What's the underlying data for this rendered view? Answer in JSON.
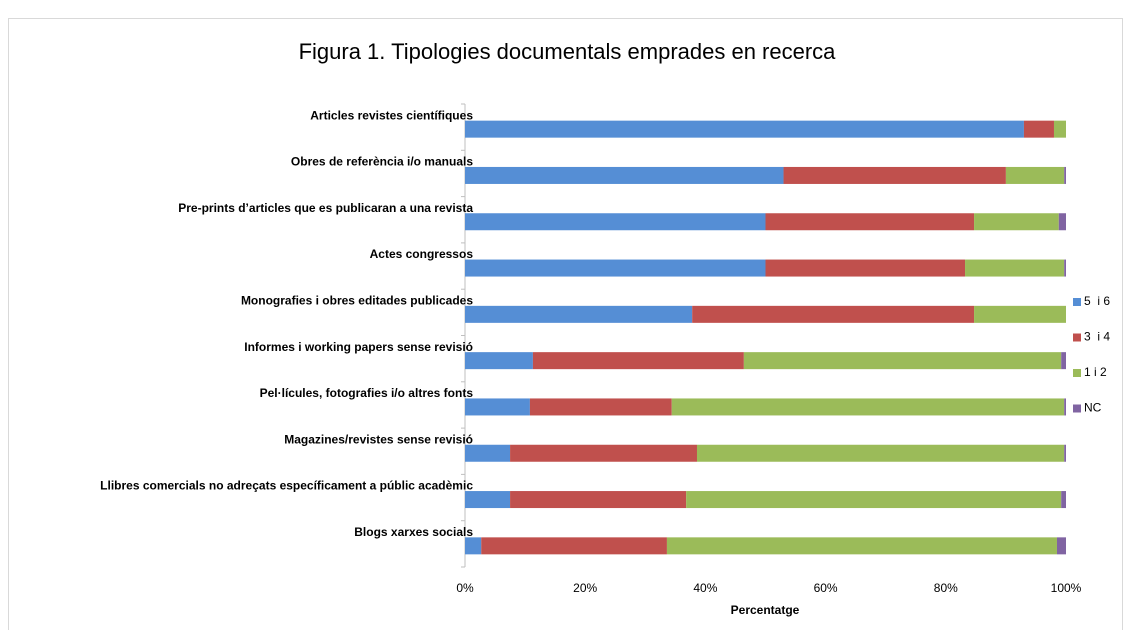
{
  "chart_data": {
    "type": "stacked_bar_horizontal",
    "title": "Figura 1. Tipologies documentals emprades en recerca",
    "x_label": "Percentatge",
    "categories": [
      "Articles revistes científiques",
      "Obres de referència i/o manuals",
      "Pre-prints d’articles que es publicaran a una revista",
      "Actes congressos",
      "Monografies i obres editades publicades",
      "Informes i working papers sense revisió",
      "Pel·lícules, fotografies i/o altres fonts",
      "Magazines/revistes sense revisió",
      "Llibres comercials no adreçats específicament a públic acadèmic",
      "Blogs xarxes socials"
    ],
    "series": [
      {
        "name": "5  i 6",
        "color": "#558ed5",
        "values": [
          93,
          53,
          50,
          50,
          37.8,
          11.3,
          10.8,
          7.5,
          7.5,
          2.7
        ]
      },
      {
        "name": "3  i 4",
        "color": "#c0504d",
        "values": [
          5,
          37,
          34.7,
          33.2,
          46.9,
          35.1,
          23.6,
          31.1,
          29.3,
          30.9
        ]
      },
      {
        "name": "1 i 2",
        "color": "#9bbb59",
        "values": [
          2,
          9.7,
          14.1,
          16.5,
          15.3,
          52.8,
          65.3,
          61.1,
          62.4,
          64.9
        ]
      },
      {
        "name": "NC",
        "color": "#8064a2",
        "values": [
          0,
          0.3,
          1.2,
          0.3,
          0,
          0.8,
          0.3,
          0.3,
          0.8,
          1.5
        ]
      }
    ],
    "xlim": [
      0,
      100
    ],
    "xticks": [
      {
        "value": 0,
        "label": "0%"
      },
      {
        "value": 20,
        "label": "20%"
      },
      {
        "value": 40,
        "label": "40%"
      },
      {
        "value": 60,
        "label": "60%"
      },
      {
        "value": 80,
        "label": "80%"
      },
      {
        "value": 100,
        "label": "100%"
      }
    ],
    "grid": false,
    "legend": "right"
  }
}
